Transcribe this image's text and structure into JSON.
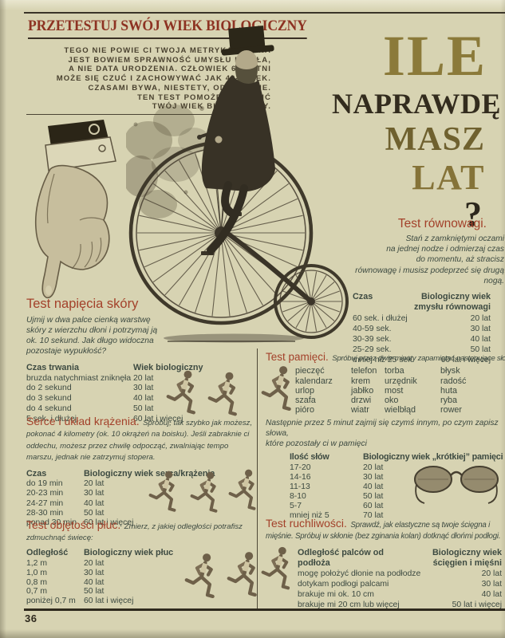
{
  "page": {
    "number": "36",
    "kicker": "PRZETESTUJ SWÓJ WIEK BIOLOGICZNY",
    "intro": "TEGO NIE POWIE CI TWOJA METRYKA. WAŻNA\nJEST BOWIEM SPRAWNOŚĆ UMYSŁU I CIAŁA,\nA NIE DATA URODZENIA. CZŁOWIEK 60-LETNI\nMOŻE SIĘ CZUĆ I ZACHOWYWAĆ JAK 40-LATEK.\nCZASAMI BYWA, NIESTETY, ODWROTNIE.\nTEN TEST POMOŻE OKREŚLIĆ\nTWÓJ WIEK BIOLOGICZNY."
  },
  "title": {
    "word1": "ILE",
    "word2": "NAPRAWDĘ",
    "word3": "MASZ",
    "word4": "LAT",
    "word5": "?"
  },
  "colors": {
    "paper": "#d7d3b2",
    "heading_red": "#a3412a",
    "kicker_red": "#8d3222",
    "title_gold": "#8b7a3a",
    "title_dark": "#332c1e",
    "body_ink": "#3d4a41",
    "rule_dark": "#3a3428"
  },
  "illustrations": {
    "hand": "pointing-hand",
    "bicycle": "penny-farthing-rider",
    "glasses": "spectacles",
    "runner": "running-man"
  },
  "tests": {
    "balance": {
      "title": "Test równowagi.",
      "desc": "Stań z zamkniętymi oczami\nna jednej nodze i odmierzaj czas\ndo momentu, aż stracisz\nrównowagę i musisz podeprzeć się drugą nogą.",
      "col1": "Czas",
      "col2": "Biologiczny wiek zmysłu równowagi",
      "rows": [
        [
          "60 sek. i dłużej",
          "20 lat"
        ],
        [
          "40-59 sek.",
          "30 lat"
        ],
        [
          "30-39 sek.",
          "40 lat"
        ],
        [
          "25-29 sek.",
          "50 lat"
        ],
        [
          "mniej niż 25 sek.",
          "60 lat i więcej"
        ]
      ]
    },
    "skin": {
      "title": "Test napięcia skóry",
      "desc": "Ujmij w dwa palce cienką warstwę\nskóry z wierzchu dłoni i potrzymaj ją\nok. 10 sekund. Jak długo widoczna\npozostaje wypukłość?",
      "col1": "Czas trwania",
      "col2": "Wiek biologiczny",
      "rows": [
        [
          "bruzda natychmiast zniknęła",
          "20 lat"
        ],
        [
          "do 2 sekund",
          "30 lat"
        ],
        [
          "do 3 sekund",
          "40 lat"
        ],
        [
          "do 4 sekund",
          "50 lat"
        ],
        [
          "5 sek. i dłużej",
          "60 lat i więcej"
        ]
      ]
    },
    "heart": {
      "title": "Serce i układ krążenia.",
      "desc": "Spróbuj, tak szybko jak możesz, pokonać 4 kilometry (ok. 10 okrążeń na boisku). Jeśli zabraknie ci oddechu, możesz przez chwilę odpocząć, zwalniając tempo marszu, jednak nie zatrzymuj stopera.",
      "col1": "Czas",
      "col2": "Biologiczny wiek serca/krążenia",
      "rows": [
        [
          "do 19 min",
          "20 lat"
        ],
        [
          "20-23 min",
          "30 lat"
        ],
        [
          "24-27 min",
          "40 lat"
        ],
        [
          "28-30 min",
          "50 lat"
        ],
        [
          "ponad 30 min",
          "60 lat i więcej"
        ]
      ]
    },
    "lungs": {
      "title": "Test objętości płuc.",
      "desc": "Zmierz, z jakiej odległości potrafisz zdmuchnąć świecę:",
      "col1": "Odległość",
      "col2": "Biologiczny wiek płuc",
      "rows": [
        [
          "1,2 m",
          "20 lat"
        ],
        [
          "1,0 m",
          "30 lat"
        ],
        [
          "0,8 m",
          "40 lat"
        ],
        [
          "0,7 m",
          "50 lat"
        ],
        [
          "poniżej 0,7 m",
          "60 lat i więcej"
        ]
      ]
    },
    "memory": {
      "title": "Test pamięci.",
      "desc": "Spróbuj przez dwie minuty zapamiętać następujące słowa:",
      "words": [
        [
          "pieczęć",
          "kalendarz",
          "urlop",
          "szafa",
          "pióro"
        ],
        [
          "telefon",
          "krem",
          "jabłko",
          "drzwi",
          "wiatr"
        ],
        [
          "torba",
          "urzędnik",
          "most",
          "oko",
          "wielbłąd"
        ],
        [
          "błysk",
          "radość",
          "huta",
          "ryba",
          "rower"
        ]
      ],
      "after": "Następnie przez 5 minut zajmij się czymś innym, po czym zapisz słowa,\nktóre pozostały ci w pamięci",
      "col1": "Ilość słów",
      "col2": "Biologiczny wiek „krótkiej” pamięci",
      "rows": [
        [
          "17-20",
          "20 lat"
        ],
        [
          "14-16",
          "30 lat"
        ],
        [
          "11-13",
          "40 lat"
        ],
        [
          "8-10",
          "50 lat"
        ],
        [
          "5-7",
          "60 lat"
        ],
        [
          "mniej niż 5",
          "70 lat"
        ]
      ]
    },
    "mobility": {
      "title": "Test ruchliwości.",
      "desc": "Sprawdź, jak elastyczne są twoje ścięgna i mięśnie. Spróbuj w skłonie (bez zginania kolan) dotknąć dłońmi podłogi.",
      "col1": "Odległość palców od podłoża",
      "col2": "Biologiczny wiek ścięgien i mięśni",
      "rows": [
        [
          "mogę położyć dłonie na podłodze",
          "20 lat"
        ],
        [
          "dotykam podłogi palcami",
          "30 lat"
        ],
        [
          "brakuje mi ok. 10 cm",
          "40 lat"
        ],
        [
          "brakuje mi 20 cm lub więcej",
          "50 lat i więcej"
        ]
      ]
    }
  }
}
